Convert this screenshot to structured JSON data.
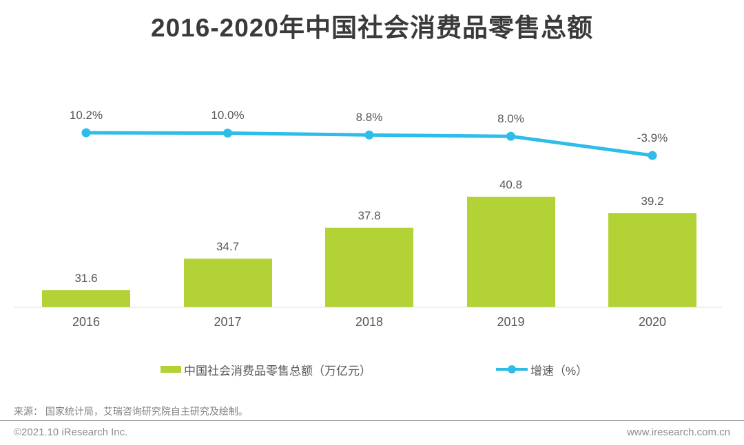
{
  "page": {
    "title": "2016-2020年中国社会消费品零售总额",
    "source": "来源： 国家统计局，艾瑞咨询研究院自主研究及绘制。",
    "footer_left": "©2021.10 iResearch Inc.",
    "footer_right": "www.iresearch.com.cn"
  },
  "legend": {
    "bar_label": "中国社会消费品零售总额（万亿元）",
    "line_label": "增速（%）"
  },
  "colors": {
    "bar_green": "#b2d235",
    "line_cyan": "#2dbde8",
    "title_text": "#3a3a3a",
    "label_text": "#595757",
    "axis_line": "#d9d9d9"
  },
  "chart_data": {
    "type": "bar+line combo",
    "title": "2016-2020年中国社会消费品零售总额",
    "categories": [
      "2016",
      "2017",
      "2018",
      "2019",
      "2020"
    ],
    "series": [
      {
        "name": "中国社会消费品零售总额（万亿元）",
        "type": "bar",
        "unit": "万亿元",
        "color": "#b2d235",
        "values": [
          31.6,
          34.7,
          37.8,
          40.8,
          39.2
        ],
        "value_labels": [
          "31.6",
          "34.7",
          "37.8",
          "40.8",
          "39.2"
        ]
      },
      {
        "name": "增速（%）",
        "type": "line",
        "unit": "%",
        "color": "#2dbde8",
        "values": [
          10.2,
          10.0,
          8.8,
          8.0,
          -3.9
        ],
        "value_labels": [
          "10.2%",
          "10.0%",
          "8.8%",
          "8.0%",
          "-3.9%"
        ]
      }
    ],
    "legend_position": "bottom",
    "grid": false,
    "xlabel": "",
    "ylabel": "",
    "bar_axis_implied_min": 30,
    "data_labels_shown": true
  }
}
